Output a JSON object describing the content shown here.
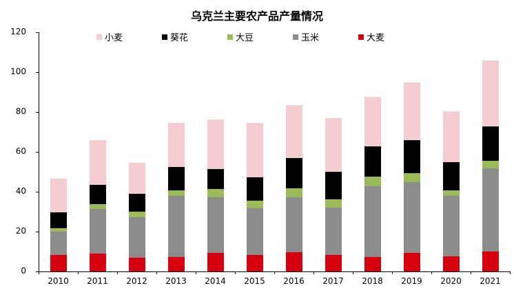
{
  "chart_data": {
    "type": "bar",
    "stacked": true,
    "title": "乌克兰主要农产品产量情况",
    "xlabel": "",
    "ylabel": "",
    "ylim": [
      0,
      120
    ],
    "yticks": [
      0,
      20,
      40,
      60,
      80,
      100,
      120
    ],
    "grid": false,
    "legend_position": "top",
    "categories": [
      "2010",
      "2011",
      "2012",
      "2013",
      "2014",
      "2015",
      "2016",
      "2017",
      "2018",
      "2019",
      "2020",
      "2021"
    ],
    "series": [
      {
        "name": "大麦",
        "color": "#d7000f",
        "values": [
          8.3,
          8.8,
          6.8,
          7.3,
          9.2,
          8.4,
          9.5,
          8.4,
          7.3,
          9.2,
          7.7,
          9.9
        ]
      },
      {
        "name": "玉米",
        "color": "#8c8c8c",
        "values": [
          11.7,
          22.6,
          20.5,
          30.5,
          28.1,
          23.2,
          27.7,
          23.8,
          35.6,
          35.7,
          30.1,
          41.7
        ]
      },
      {
        "name": "大豆",
        "color": "#9bbb59",
        "values": [
          1.6,
          2.3,
          2.6,
          2.9,
          4.1,
          3.9,
          4.4,
          4.1,
          4.7,
          4.4,
          3.0,
          3.8
        ]
      },
      {
        "name": "葵花",
        "color": "#000000",
        "values": [
          8.2,
          9.9,
          9.1,
          11.7,
          10.1,
          11.8,
          15.2,
          13.7,
          15.2,
          16.6,
          14.0,
          17.5
        ]
      },
      {
        "name": "小麦",
        "color": "#f5cccf",
        "values": [
          16.9,
          22.3,
          15.6,
          22.2,
          24.7,
          27.3,
          26.8,
          26.9,
          24.9,
          29.0,
          25.4,
          33.1
        ]
      }
    ],
    "legend_order": [
      "小麦",
      "葵花",
      "大豆",
      "玉米",
      "大麦"
    ]
  }
}
